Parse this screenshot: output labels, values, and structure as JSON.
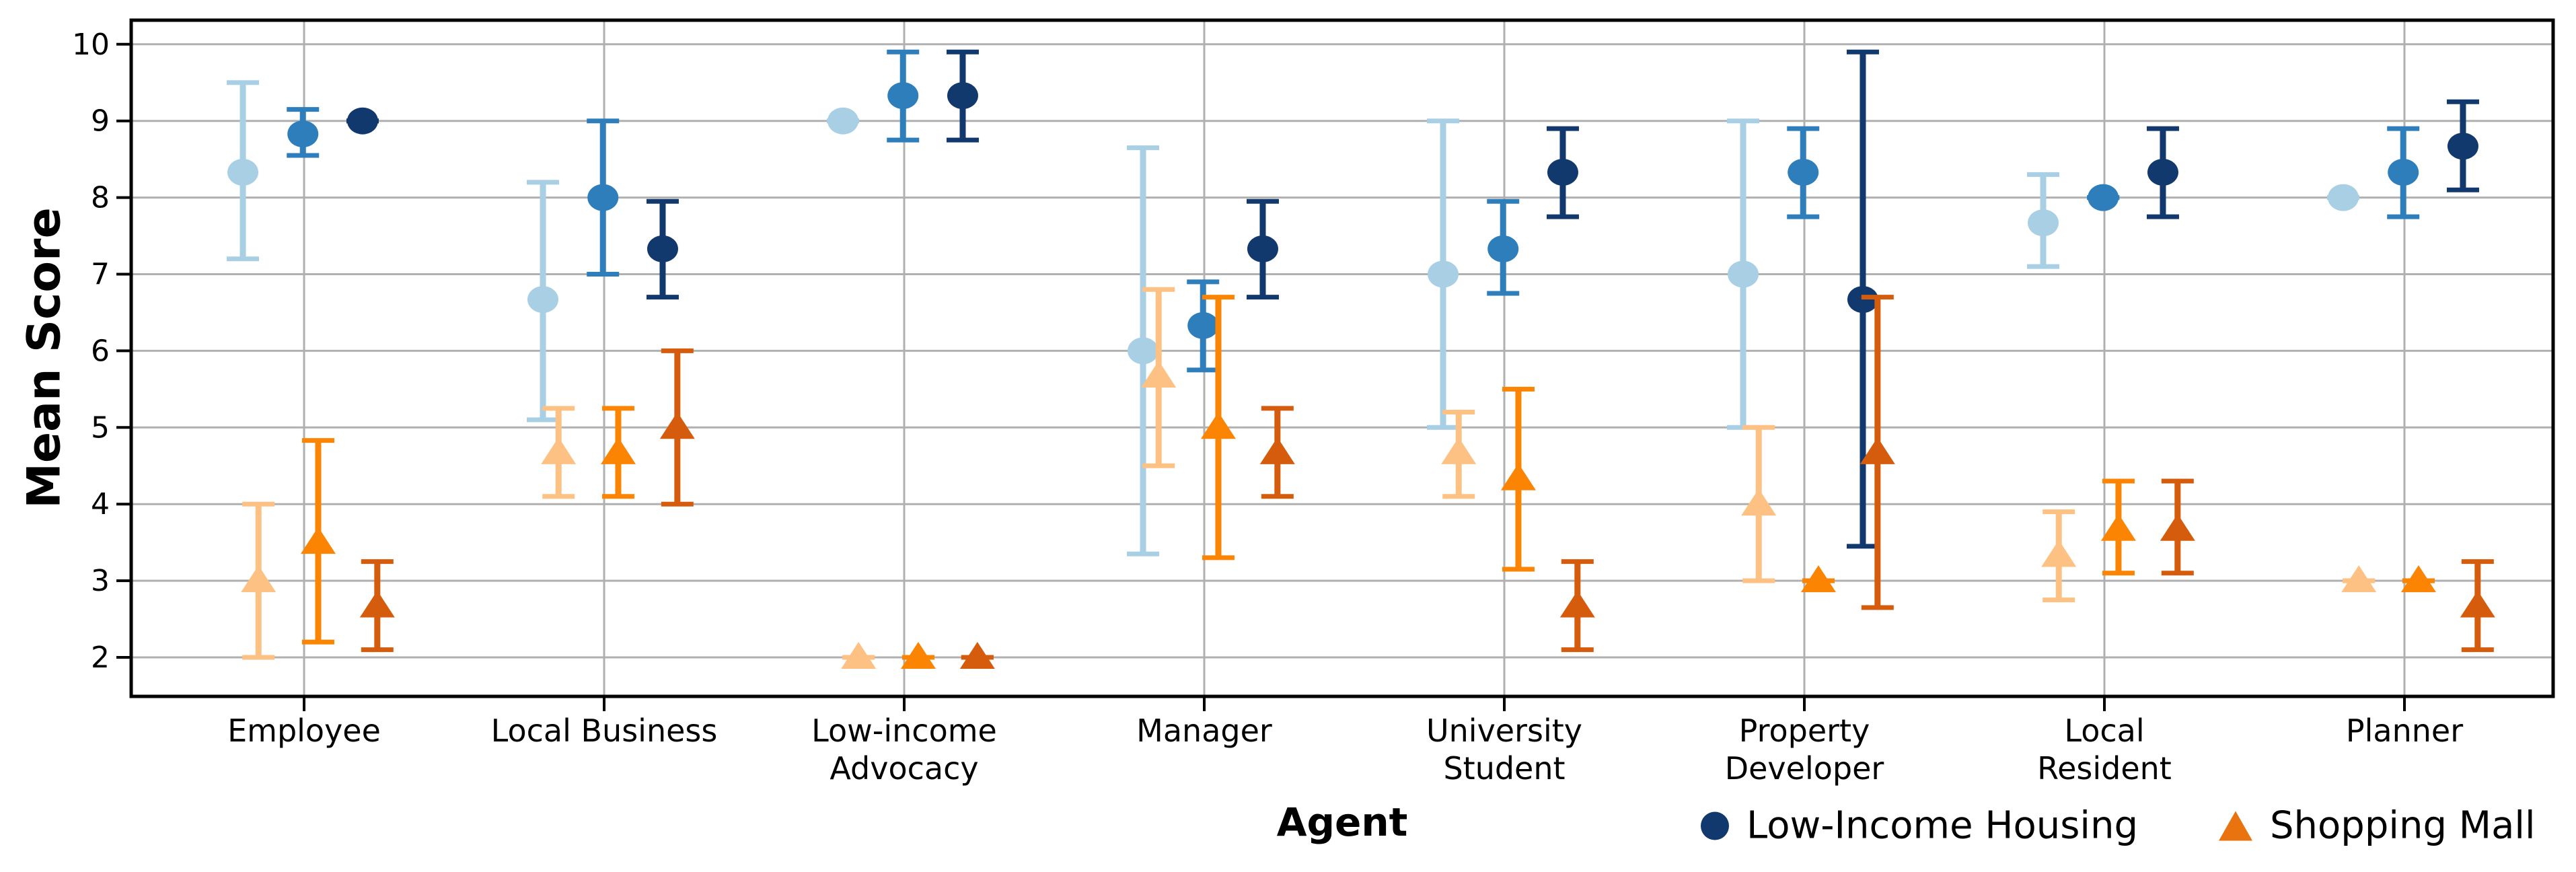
{
  "chart_data": {
    "type": "scatter",
    "subtype": "grouped-pointplot-with-errorbars",
    "title": "",
    "xlabel": "Agent",
    "ylabel": "Mean Score",
    "ylim": [
      1.5,
      10.35
    ],
    "yticks": [
      2,
      3,
      4,
      5,
      6,
      7,
      8,
      9,
      10
    ],
    "grid": true,
    "grid_color": "#b0b0b0",
    "spine_color": "#000000",
    "categories": [
      "Employee",
      "Local Business",
      "Low-income Advocacy",
      "Manager",
      "University Student",
      "Property Developer",
      "Local Resident",
      "Planner"
    ],
    "category_label_lines": [
      [
        "Employee"
      ],
      [
        "Local Business"
      ],
      [
        "Low-income",
        "Advocacy"
      ],
      [
        "Manager"
      ],
      [
        "University",
        "Student"
      ],
      [
        "Property",
        "Developer"
      ],
      [
        "Local",
        "Resident"
      ],
      [
        "Planner"
      ]
    ],
    "legend": [
      {
        "label": "Low-Income Housing",
        "marker": "circle",
        "color": "#12396d"
      },
      {
        "label": "Shopping Mall",
        "marker": "triangle",
        "color": "#e9730f"
      }
    ],
    "legend_position": "bottom-right",
    "series": [
      {
        "name": "Low-Income Housing (light)",
        "project": "Low-Income Housing",
        "marker": "circle",
        "color": "#a9cfe5",
        "offset": -0.204,
        "means": [
          8.33,
          6.67,
          9.0,
          6.0,
          7.0,
          7.0,
          7.67,
          8.0
        ],
        "ci_low": [
          7.2,
          5.1,
          9.0,
          3.35,
          5.0,
          5.0,
          7.1,
          8.0
        ],
        "ci_high": [
          9.5,
          8.2,
          9.0,
          8.65,
          9.0,
          9.0,
          8.3,
          8.0
        ]
      },
      {
        "name": "Low-Income Housing (medium)",
        "project": "Low-Income Housing",
        "marker": "circle",
        "color": "#2e7ebc",
        "offset": -0.004,
        "means": [
          8.83,
          8.0,
          9.33,
          6.33,
          7.33,
          8.33,
          8.0,
          8.33
        ],
        "ci_low": [
          8.55,
          7.0,
          8.75,
          5.75,
          6.75,
          7.75,
          8.0,
          7.75
        ],
        "ci_high": [
          9.15,
          9.0,
          9.9,
          6.9,
          7.95,
          8.9,
          8.0,
          8.9
        ]
      },
      {
        "name": "Low-Income Housing (dark)",
        "project": "Low-Income Housing",
        "marker": "circle",
        "color": "#12396d",
        "offset": 0.195,
        "means": [
          9.0,
          7.33,
          9.33,
          7.33,
          8.33,
          6.67,
          8.33,
          8.67
        ],
        "ci_low": [
          9.0,
          6.7,
          8.75,
          6.7,
          7.75,
          3.45,
          7.75,
          8.1
        ],
        "ci_high": [
          9.0,
          7.95,
          9.9,
          7.95,
          8.9,
          9.9,
          8.9,
          9.25
        ]
      },
      {
        "name": "Shopping Mall (light)",
        "project": "Shopping Mall",
        "marker": "triangle",
        "color": "#fdc283",
        "offset": -0.152,
        "means": [
          3.0,
          4.67,
          2.0,
          5.67,
          4.67,
          4.0,
          3.33,
          3.0
        ],
        "ci_low": [
          2.0,
          4.1,
          2.0,
          4.5,
          4.1,
          3.0,
          2.75,
          3.0
        ],
        "ci_high": [
          4.0,
          5.25,
          2.0,
          6.8,
          5.2,
          5.0,
          3.9,
          3.0
        ]
      },
      {
        "name": "Shopping Mall (medium)",
        "project": "Shopping Mall",
        "marker": "triangle",
        "color": "#fb8502",
        "offset": 0.047,
        "means": [
          3.5,
          4.67,
          2.0,
          5.0,
          4.33,
          3.0,
          3.67,
          3.0
        ],
        "ci_low": [
          2.2,
          4.1,
          2.0,
          3.3,
          3.15,
          3.0,
          3.1,
          3.0
        ],
        "ci_high": [
          4.83,
          5.25,
          2.0,
          6.7,
          5.5,
          3.0,
          4.3,
          3.0
        ]
      },
      {
        "name": "Shopping Mall (dark)",
        "project": "Shopping Mall",
        "marker": "triangle",
        "color": "#d55c0c",
        "offset": 0.244,
        "means": [
          2.67,
          5.0,
          2.0,
          4.67,
          2.67,
          4.67,
          3.67,
          2.67
        ],
        "ci_low": [
          2.1,
          4.0,
          2.0,
          4.1,
          2.1,
          2.65,
          3.1,
          2.1
        ],
        "ci_high": [
          3.25,
          6.0,
          2.0,
          5.25,
          3.25,
          6.7,
          4.3,
          3.25
        ]
      }
    ]
  }
}
